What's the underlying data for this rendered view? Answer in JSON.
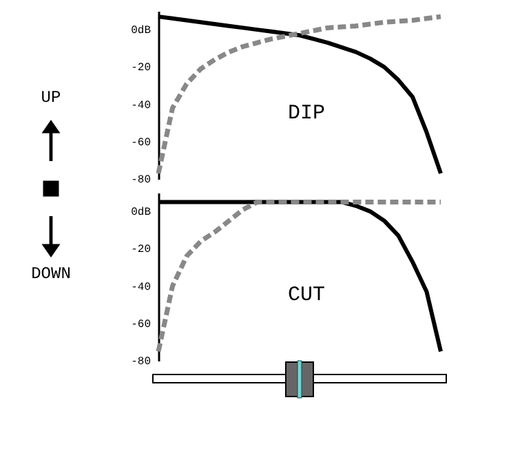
{
  "chart_data": [
    {
      "type": "other",
      "annotations": [
        "UP",
        "DOWN"
      ]
    },
    {
      "type": "line",
      "annotations": [
        "DIP"
      ],
      "categories": [
        null,
        null,
        null,
        null,
        null,
        null,
        null,
        null,
        null,
        null,
        null,
        null,
        null,
        null,
        null,
        null,
        null,
        null,
        null,
        null,
        null
      ],
      "ylim": [
        -80,
        10
      ],
      "yticks": [
        {
          "value": 0,
          "label": "0dB"
        },
        -20,
        -40,
        -60,
        -80
      ],
      "tick_labels": "y",
      "grid": false,
      "series": [
        {
          "color": "#000000",
          "line_style": "solid",
          "values": [
            7,
            6,
            5,
            4,
            3,
            2,
            1,
            0,
            -1,
            -2,
            -3,
            -5,
            -7,
            -9.5,
            -12,
            -15.5,
            -20,
            -27,
            -36,
            -55,
            -77
          ]
        },
        {
          "color": "#888888",
          "line_style": "dashed",
          "values": [
            -77,
            -42,
            -29,
            -21,
            -16,
            -12,
            -9,
            -7,
            -5,
            -3.5,
            -2,
            -0.5,
            1,
            1.5,
            2,
            3,
            4,
            4.5,
            5,
            6,
            7
          ]
        }
      ]
    },
    {
      "type": "line",
      "annotations": [
        "CUT"
      ],
      "categories": [
        null,
        null,
        null,
        null,
        null,
        null,
        null,
        null,
        null,
        null,
        null,
        null,
        null,
        null,
        null,
        null,
        null,
        null,
        null,
        null,
        null
      ],
      "ylim": [
        -80,
        10
      ],
      "yticks": [
        {
          "value": 0,
          "label": "0dB"
        },
        -20,
        -40,
        -60,
        -80
      ],
      "tick_labels": "y",
      "grid": false,
      "series": [
        {
          "color": "#000000",
          "line_style": "solid",
          "values": [
            5,
            5,
            5,
            5,
            5,
            5,
            5,
            5,
            5,
            5,
            5,
            5,
            5,
            5,
            3,
            0,
            -5,
            -13,
            -27,
            -43,
            -75
          ]
        },
        {
          "color": "#888888",
          "line_style": "dashed",
          "values": [
            -75,
            -40,
            -24,
            -16,
            -11,
            -5,
            1,
            5,
            5,
            5,
            5,
            5,
            5,
            5,
            5,
            5,
            5,
            5,
            5,
            5,
            5
          ]
        }
      ]
    }
  ]
}
